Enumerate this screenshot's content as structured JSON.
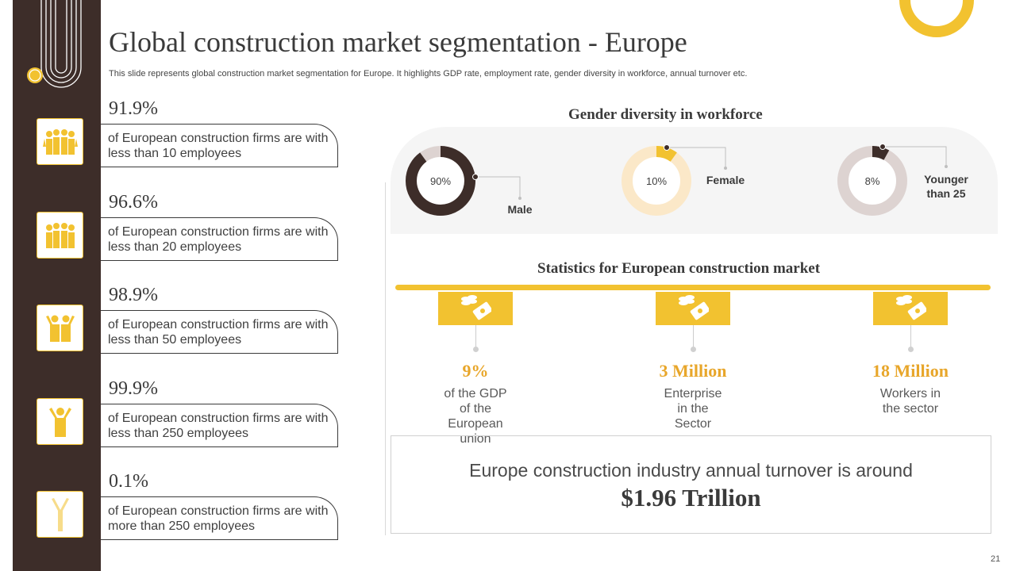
{
  "header": {
    "title": "Global construction market segmentation - Europe",
    "subtitle": "This slide represents global construction market segmentation for Europe. It highlights GDP rate, employment rate, gender diversity in workforce, annual turnover etc."
  },
  "firm_stats": [
    {
      "percent": "91.9%",
      "text": "of European construction firms are with less than 10 employees",
      "icon": "group-people-icon"
    },
    {
      "percent": "96.6%",
      "text": "of European construction firms are with less than 20 employees",
      "icon": "group-people-icon"
    },
    {
      "percent": "98.9%",
      "text": "of European construction firms are with less than 50 employees",
      "icon": "people-icon"
    },
    {
      "percent": "99.9%",
      "text": "of European construction firms are with less than 250 employees",
      "icon": "person-icon"
    },
    {
      "percent": "0.1%",
      "text": "of European construction firms are with more than 250 employees",
      "icon": "person-outline-icon"
    }
  ],
  "gender_diversity": {
    "heading": "Gender diversity  in workforce",
    "donuts": [
      {
        "value_label": "90%",
        "value": 90,
        "label": "Male",
        "color": "#3d2d29",
        "track": "#ddd3d1"
      },
      {
        "value_label": "10%",
        "value": 10,
        "label": "Female",
        "color": "#f2c230",
        "track": "#fbe8c8"
      },
      {
        "value_label": "8%",
        "value": 8,
        "label": "Younger than 25",
        "color": "#3d2d29",
        "track": "#ddd3d1"
      }
    ]
  },
  "statistics": {
    "heading": "Statistics for European construction market",
    "items": [
      {
        "value": "9%",
        "desc": "of the GDP of the European union",
        "icon": "money-icon"
      },
      {
        "value": "3 Million",
        "desc": "Enterprise in the Sector",
        "icon": "money-icon"
      },
      {
        "value": "18 Million",
        "desc": "Workers in the sector",
        "icon": "money-icon"
      }
    ]
  },
  "turnover": {
    "text": "Europe construction industry annual turnover is around",
    "value": "$1.96 Trillion"
  },
  "page_number": "21",
  "colors": {
    "dark": "#3d2d29",
    "accent": "#f2c230",
    "value_orange": "#e8a62a"
  }
}
